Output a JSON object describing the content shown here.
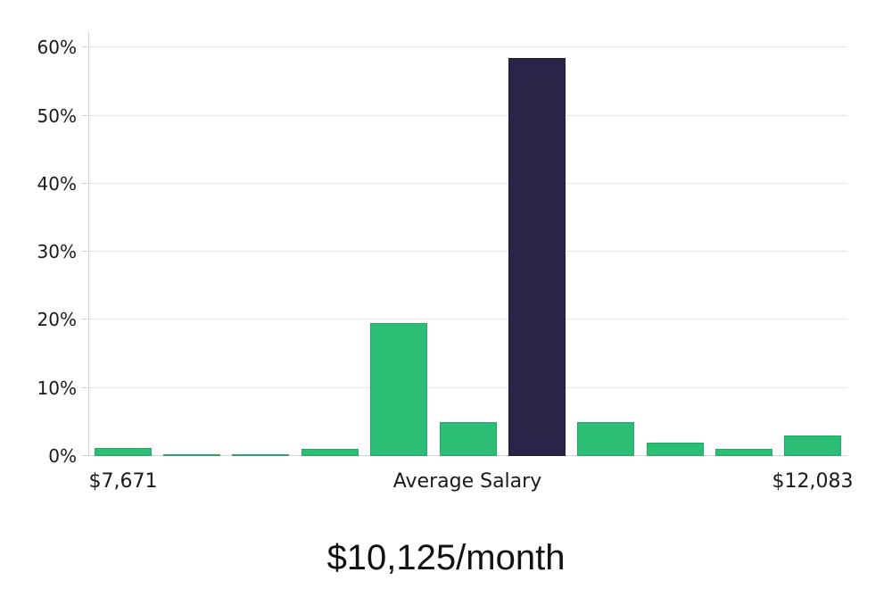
{
  "chart_data": {
    "type": "bar",
    "subtype": "salary-distribution-histogram",
    "title": "$10,125/month",
    "bars": {
      "values_pct": [
        1.2,
        0.3,
        0.3,
        1.1,
        19.5,
        5,
        58.5,
        5,
        2,
        1.1,
        3
      ],
      "highlight_index": 6
    },
    "x_tick_labels": [
      {
        "text": "$7,671",
        "position": "left"
      },
      {
        "text": "Average Salary",
        "position": "center"
      },
      {
        "text": "$12,083",
        "position": "right"
      }
    ],
    "y_ticks": [
      "0%",
      "10%",
      "20%",
      "30%",
      "40%",
      "50%",
      "60%"
    ],
    "y_tick_values": [
      0,
      10,
      20,
      30,
      40,
      50,
      60
    ],
    "ylim": [
      0,
      62.4
    ],
    "grid": true,
    "legend": false,
    "colors": {
      "bar": "#2dbe76",
      "bar_border": "#25a866",
      "highlight_bar": "#2a2449",
      "highlight_bar_border": "#221d3c",
      "grid": "#e6e6e6",
      "axis": "#d4d4d4",
      "label_text": "#1a1a1a",
      "title_text": "#111111"
    }
  }
}
